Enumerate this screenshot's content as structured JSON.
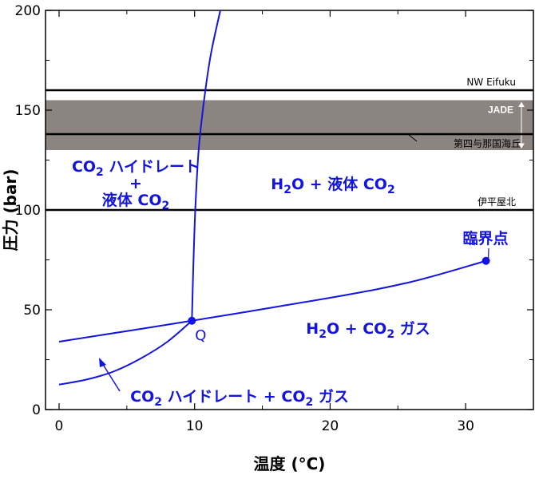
{
  "chart_data": {
    "type": "line",
    "xlabel": "温度 (°C)",
    "ylabel": "圧力 (bar)",
    "xlim": [
      -1,
      35
    ],
    "ylim": [
      0,
      200
    ],
    "x_ticks": [
      0,
      10,
      20,
      30
    ],
    "y_ticks": [
      0,
      50,
      100,
      150,
      200
    ],
    "grid": false,
    "series": [
      {
        "key": "upper_boundary",
        "color": "#1414e0",
        "points": [
          [
            9.8,
            44.5
          ],
          [
            9.9,
            70
          ],
          [
            10.05,
            100
          ],
          [
            10.3,
            130
          ],
          [
            10.7,
            155
          ],
          [
            11.2,
            178
          ],
          [
            11.9,
            200
          ]
        ]
      },
      {
        "key": "gas_liquid_boundary",
        "color": "#1414e0",
        "points": [
          [
            0,
            34
          ],
          [
            9.8,
            44.5
          ],
          [
            20,
            56
          ],
          [
            26,
            64
          ],
          [
            31.5,
            74.5
          ]
        ]
      },
      {
        "key": "lower_hydrate_boundary",
        "color": "#1414e0",
        "points": [
          [
            0,
            12.5
          ],
          [
            2,
            15
          ],
          [
            4,
            19
          ],
          [
            6,
            25.5
          ],
          [
            8,
            34
          ],
          [
            9.8,
            44.5
          ]
        ]
      }
    ],
    "reference_lines": [
      {
        "label": "NW Eifuku",
        "y": 160,
        "color": "#000000",
        "width": 2.5
      },
      {
        "label": "第四与那国海丘",
        "y": 138,
        "color": "#000000",
        "width": 2.5
      },
      {
        "label": "伊平屋北",
        "y": 100,
        "color": "#000000",
        "width": 2.5
      }
    ],
    "bands": [
      {
        "label": "JADE",
        "y_range": [
          130,
          155
        ],
        "color": "#8c8480"
      }
    ],
    "points": [
      {
        "label": "Q",
        "x": 9.8,
        "y": 44.5
      },
      {
        "label": "臨界点",
        "x": 31.5,
        "y": 74.5
      }
    ],
    "regions": [
      {
        "key": "hydrate_liquid",
        "lines": [
          {
            "main": "CO",
            "sub": "2",
            "rest": " ハイドレート"
          },
          {
            "main": "+",
            "sub": "",
            "rest": ""
          },
          {
            "main": "液体 CO",
            "sub": "2",
            "rest": ""
          }
        ]
      },
      {
        "key": "water_liquid",
        "lines": [
          {
            "pre": "H",
            "sub1": "2",
            "mid": "O + 液体 CO",
            "sub2": "2"
          }
        ]
      },
      {
        "key": "water_gas",
        "lines": [
          {
            "pre": "H",
            "sub1": "2",
            "mid": "O + CO",
            "sub2": "2",
            "post": " ガス"
          }
        ]
      },
      {
        "key": "hydrate_gas",
        "lines": [
          {
            "pre": "CO",
            "sub1": "2",
            "mid": " ハイドレート + CO",
            "sub2": "2",
            "post": " ガス"
          }
        ]
      }
    ]
  }
}
